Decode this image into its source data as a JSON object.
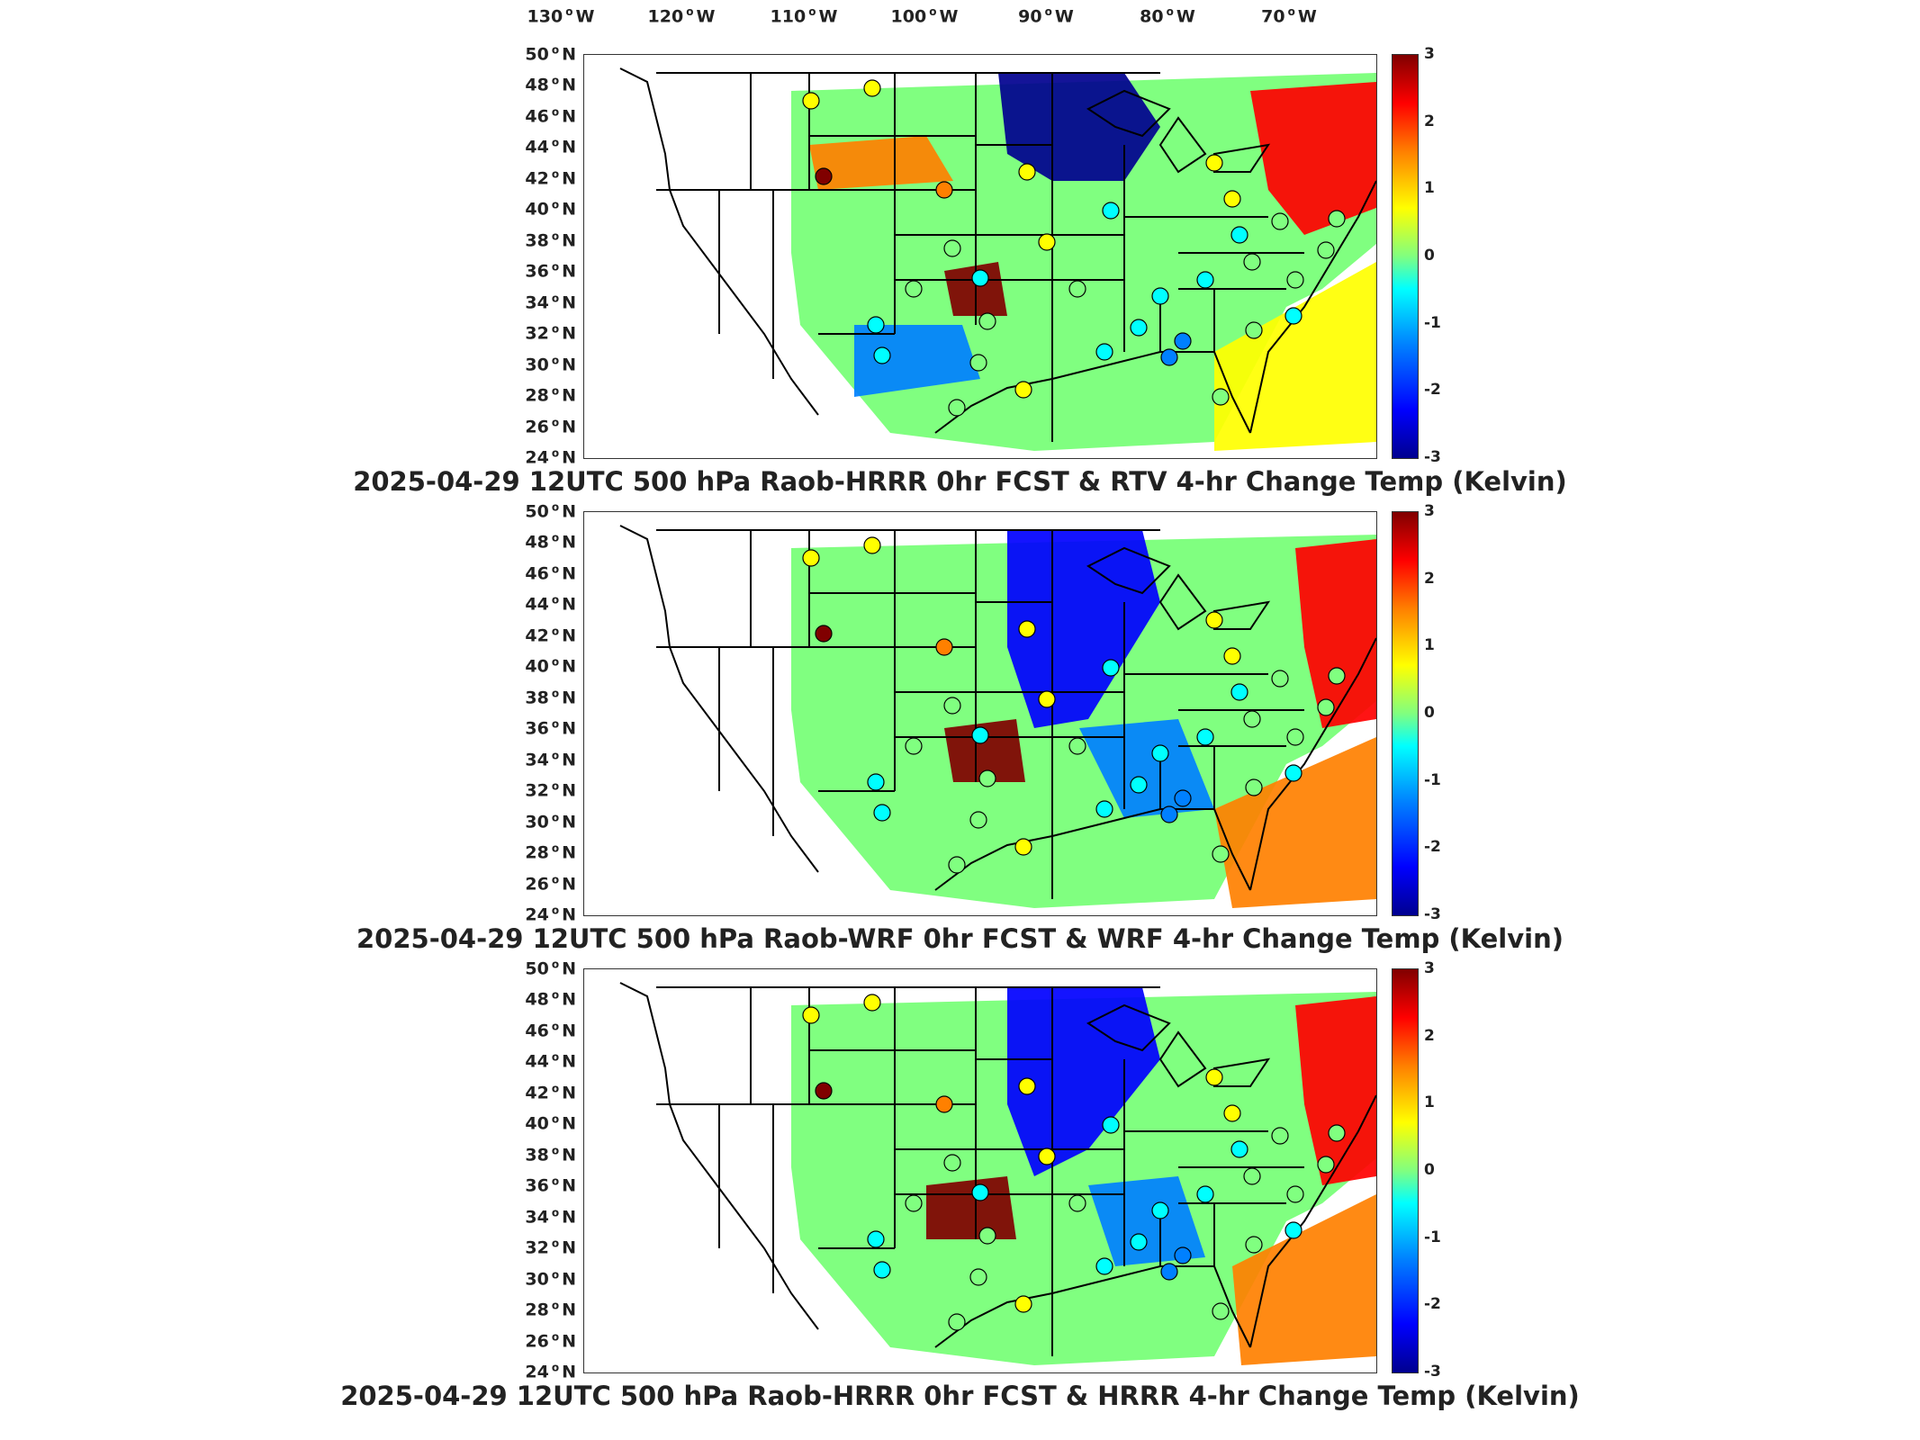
{
  "lon_axis": [
    "130",
    "120",
    "110",
    "100",
    "90",
    "80",
    "70"
  ],
  "lon_hemisphere": "W",
  "lat_axis": [
    "50",
    "48",
    "46",
    "44",
    "42",
    "40",
    "38",
    "36",
    "34",
    "32",
    "30",
    "28",
    "26",
    "24"
  ],
  "lat_hemisphere": "N",
  "colorbar_ticks": [
    "3",
    "2",
    "1",
    "0",
    "-1",
    "-2",
    "-3"
  ],
  "colormap": [
    "#00008f",
    "#0000ff",
    "#0080ff",
    "#00ffff",
    "#80ff80",
    "#ffff00",
    "#ff8000",
    "#ff0000",
    "#800000"
  ],
  "panels": [
    {
      "title": "2025-04-29 12UTC 500 hPa Raob-HRRR 0hr FCST & RTV 4-hr Change Temp (Kelvin)"
    },
    {
      "title": "2025-04-29 12UTC 500 hPa Raob-WRF 0hr FCST & WRF 4-hr Change Temp (Kelvin)"
    },
    {
      "title": "2025-04-29 12UTC 500 hPa Raob-HRRR 0hr FCST & HRRR 4-hr Change Temp (Kelvin)"
    }
  ]
}
